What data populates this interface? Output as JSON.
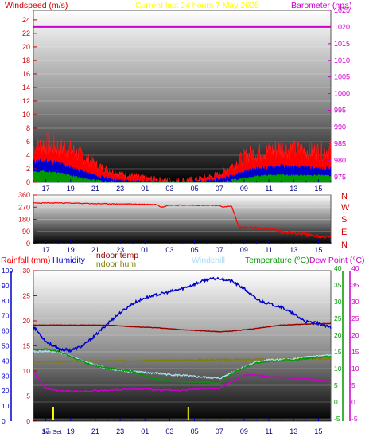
{
  "header": {
    "left_label": "Windspeed (m/s)",
    "center_label": "Current last 24 hours 7 May 2025",
    "right_label": "Barometer (hpa)"
  },
  "colors": {
    "wind_axis": "#cc0000",
    "baro": "#cc00cc",
    "title": "#ffff00",
    "direction": "#ff0000",
    "rain": "#ff0000",
    "humidity": "#0000cc",
    "indoor_temp": "#990000",
    "indoor_hum": "#808000",
    "windchill": "#aaddee",
    "temperature": "#009900",
    "dewpoint": "#cc00cc",
    "sun": "#ffff00"
  },
  "chart_data": [
    {
      "type": "area",
      "name": "wind",
      "x_ticks": [
        "17",
        "19",
        "21",
        "23",
        "01",
        "03",
        "05",
        "07",
        "09",
        "11",
        "13",
        "15"
      ],
      "y_ticks_left": [
        0,
        2,
        4,
        6,
        8,
        10,
        12,
        14,
        16,
        18,
        20,
        22,
        24
      ],
      "y_ticks_right": [
        975,
        980,
        985,
        990,
        995,
        1000,
        1005,
        1010,
        1015,
        1020,
        1025
      ],
      "ylim_left": [
        0,
        25.4
      ],
      "ylim_right": [
        973.4,
        1025
      ],
      "barometer_value": 1020,
      "gust": [
        [
          0,
          5
        ],
        [
          1,
          5.8
        ],
        [
          2,
          5.3
        ],
        [
          3,
          4.8
        ],
        [
          4,
          3.8
        ],
        [
          5,
          2.6
        ],
        [
          6,
          1.8
        ],
        [
          7,
          1.3
        ],
        [
          8,
          1.0
        ],
        [
          9,
          0.6
        ],
        [
          10,
          0.4
        ],
        [
          11,
          0.2
        ],
        [
          12,
          0.2
        ],
        [
          13,
          0.4
        ],
        [
          14,
          0.7
        ],
        [
          15,
          1.2
        ],
        [
          16,
          2.4
        ],
        [
          17,
          3.8
        ],
        [
          18,
          4.4
        ],
        [
          19,
          4.6
        ],
        [
          20,
          5.0
        ],
        [
          21,
          4.8
        ],
        [
          22,
          4.7
        ],
        [
          23,
          4.6
        ],
        [
          24,
          4.8
        ]
      ],
      "average": [
        [
          0,
          3
        ],
        [
          1,
          3.2
        ],
        [
          2,
          2.8
        ],
        [
          3,
          2.2
        ],
        [
          4,
          1.6
        ],
        [
          5,
          1.0
        ],
        [
          6,
          0.6
        ],
        [
          7,
          0.3
        ],
        [
          8,
          0.2
        ],
        [
          9,
          0.1
        ],
        [
          10,
          0.1
        ],
        [
          11,
          0.0
        ],
        [
          12,
          0.0
        ],
        [
          13,
          0.1
        ],
        [
          14,
          0.2
        ],
        [
          15,
          0.4
        ],
        [
          16,
          1.0
        ],
        [
          17,
          1.6
        ],
        [
          18,
          2.0
        ],
        [
          19,
          2.2
        ],
        [
          20,
          2.4
        ],
        [
          21,
          2.2
        ],
        [
          22,
          2.2
        ],
        [
          23,
          2.0
        ],
        [
          24,
          2.1
        ]
      ],
      "minimum": [
        [
          0,
          1.5
        ],
        [
          1,
          1.6
        ],
        [
          2,
          1.4
        ],
        [
          3,
          1.0
        ],
        [
          4,
          0.6
        ],
        [
          5,
          0.3
        ],
        [
          6,
          0.1
        ],
        [
          7,
          0
        ],
        [
          8,
          0
        ],
        [
          9,
          0
        ],
        [
          10,
          0
        ],
        [
          11,
          0
        ],
        [
          12,
          0
        ],
        [
          13,
          0
        ],
        [
          14,
          0
        ],
        [
          15,
          0
        ],
        [
          16,
          0.3
        ],
        [
          17,
          0.6
        ],
        [
          18,
          0.9
        ],
        [
          19,
          1.0
        ],
        [
          20,
          1.1
        ],
        [
          21,
          1.0
        ],
        [
          22,
          1.0
        ],
        [
          23,
          1.0
        ],
        [
          24,
          1.0
        ]
      ]
    },
    {
      "type": "line",
      "name": "wind-direction",
      "x_ticks": [
        "17",
        "19",
        "21",
        "23",
        "01",
        "03",
        "05",
        "07",
        "09",
        "11",
        "13",
        "15"
      ],
      "y_ticks": [
        0,
        90,
        180,
        270,
        360
      ],
      "ylim": [
        0,
        360
      ],
      "compass_labels": [
        "N",
        "W",
        "S",
        "E",
        "N"
      ],
      "values": [
        [
          0,
          300
        ],
        [
          2,
          302
        ],
        [
          4,
          298
        ],
        [
          6,
          295
        ],
        [
          8,
          293
        ],
        [
          10,
          290
        ],
        [
          10.3,
          270
        ],
        [
          11,
          285
        ],
        [
          13,
          284
        ],
        [
          15,
          282
        ],
        [
          15.3,
          270
        ],
        [
          16,
          278
        ],
        [
          16.6,
          120
        ],
        [
          18,
          115
        ],
        [
          19.5,
          105
        ],
        [
          20,
          85
        ],
        [
          21.5,
          75
        ],
        [
          22.5,
          60
        ],
        [
          24,
          45
        ]
      ]
    },
    {
      "type": "line",
      "name": "temperature-humidity",
      "x_ticks": [
        "17",
        "19",
        "21",
        "23",
        "01",
        "03",
        "05",
        "07",
        "09",
        "11",
        "13",
        "15"
      ],
      "sunrise_label": "SunSet",
      "legend": [
        "Rainfall (mm)",
        "Humidity",
        "Indoor temp",
        "Indoor hum",
        "Windchill",
        "Temperature (°C)",
        "Dew Point (°C)"
      ],
      "y_ticks_humidity": [
        0,
        10,
        20,
        30,
        40,
        50,
        60,
        70,
        80,
        90,
        100
      ],
      "y_ticks_rain": [
        0,
        5,
        10,
        15,
        20,
        25,
        30
      ],
      "y_ticks_temperature": [
        -5,
        0,
        5,
        10,
        15,
        20,
        25,
        30,
        35,
        40
      ],
      "y_ticks_dewpoint": [
        -5,
        0,
        5,
        10,
        15,
        20,
        25,
        30,
        35,
        40
      ],
      "ylim_humidity": [
        0,
        100
      ],
      "ylim_temperature": [
        -5,
        40
      ],
      "humidity": [
        [
          0,
          63
        ],
        [
          1,
          53
        ],
        [
          2,
          48
        ],
        [
          3,
          47
        ],
        [
          4,
          50
        ],
        [
          5,
          57
        ],
        [
          6,
          65
        ],
        [
          7,
          72
        ],
        [
          8,
          78
        ],
        [
          9,
          82
        ],
        [
          10,
          84
        ],
        [
          11,
          86
        ],
        [
          12,
          88
        ],
        [
          13,
          91
        ],
        [
          14,
          94
        ],
        [
          15,
          95
        ],
        [
          16,
          93
        ],
        [
          17,
          88
        ],
        [
          18,
          81
        ],
        [
          19,
          78
        ],
        [
          20,
          76
        ],
        [
          21,
          71
        ],
        [
          22,
          66
        ],
        [
          23,
          65
        ],
        [
          24,
          62
        ]
      ],
      "indoor_temp": [
        [
          0,
          23
        ],
        [
          2,
          23
        ],
        [
          4,
          23
        ],
        [
          6,
          23
        ],
        [
          8,
          22.5
        ],
        [
          10,
          22.2
        ],
        [
          12,
          21.6
        ],
        [
          14,
          21.2
        ],
        [
          15,
          21.0
        ],
        [
          16,
          21.2
        ],
        [
          18,
          22.0
        ],
        [
          20,
          23.0
        ],
        [
          22,
          23.3
        ],
        [
          24,
          23.5
        ]
      ],
      "indoor_hum": [
        [
          0,
          12
        ],
        [
          24,
          13
        ]
      ],
      "windchill": [
        [
          0,
          15
        ],
        [
          1,
          15.2
        ],
        [
          2,
          15
        ],
        [
          3,
          13.8
        ],
        [
          4,
          12.2
        ],
        [
          5,
          11
        ],
        [
          6,
          10
        ],
        [
          7,
          9.4
        ],
        [
          8,
          9.2
        ],
        [
          9,
          8.8
        ],
        [
          10,
          8.6
        ],
        [
          11,
          8.2
        ],
        [
          12,
          8
        ],
        [
          13,
          7.6
        ],
        [
          14,
          7.4
        ],
        [
          15,
          7.0
        ],
        [
          16,
          8.8
        ],
        [
          17,
          10.4
        ],
        [
          18,
          12
        ],
        [
          19,
          12.6
        ],
        [
          20,
          12.6
        ],
        [
          21,
          12.8
        ],
        [
          22,
          13.4
        ],
        [
          23,
          13.8
        ],
        [
          24,
          14
        ]
      ],
      "temperature": [
        [
          0,
          15.5
        ],
        [
          1,
          15.8
        ],
        [
          2,
          15.2
        ],
        [
          3,
          13.6
        ],
        [
          4,
          12
        ],
        [
          5,
          10.8
        ],
        [
          6,
          10.2
        ],
        [
          7,
          9.7
        ],
        [
          8,
          9.2
        ],
        [
          9,
          7.7
        ],
        [
          10,
          6.9
        ],
        [
          11,
          6.5
        ],
        [
          12,
          6.2
        ],
        [
          13,
          6.0
        ],
        [
          14,
          6.0
        ],
        [
          15,
          5.5
        ],
        [
          16,
          8.6
        ],
        [
          17,
          10.2
        ],
        [
          18,
          11.6
        ],
        [
          19,
          12.1
        ],
        [
          20,
          12.4
        ],
        [
          21,
          12.6
        ],
        [
          22,
          13.0
        ],
        [
          23,
          13.4
        ],
        [
          24,
          13.6
        ]
      ],
      "dewpoint": [
        [
          0,
          9
        ],
        [
          1,
          4
        ],
        [
          2,
          3.4
        ],
        [
          3,
          3.2
        ],
        [
          4,
          3.2
        ],
        [
          5,
          3.4
        ],
        [
          6,
          3.5
        ],
        [
          7,
          3.7
        ],
        [
          8,
          3.9
        ],
        [
          9,
          3.9
        ],
        [
          10,
          3.6
        ],
        [
          11,
          3.6
        ],
        [
          12,
          3.5
        ],
        [
          13,
          3.8
        ],
        [
          14,
          4
        ],
        [
          15,
          4
        ],
        [
          16,
          6
        ],
        [
          17,
          8.0
        ],
        [
          18,
          8.2
        ],
        [
          19,
          7.6
        ],
        [
          20,
          7.4
        ],
        [
          21,
          7.2
        ],
        [
          22,
          7.0
        ],
        [
          23,
          6.6
        ],
        [
          24,
          6.2
        ]
      ],
      "rainfall": [
        [
          0,
          0
        ],
        [
          24,
          0
        ]
      ],
      "sun_events": [
        1.6,
        12.5
      ]
    }
  ]
}
